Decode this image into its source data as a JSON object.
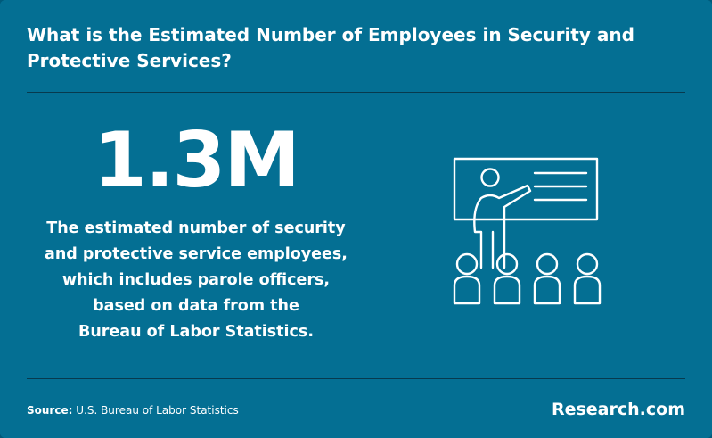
{
  "colors": {
    "background": "#046f93",
    "text": "#ffffff",
    "divider": "#0b2a36"
  },
  "header": {
    "title_line1": "What is the Estimated Number of Employees in Security and",
    "title_line2": "Protective Services?"
  },
  "stat": {
    "value": "1.3M",
    "description_lines": [
      "The estimated number of security",
      "and protective service employees,",
      "which includes parole officers,",
      "based on data from the",
      "Bureau of Labor Statistics."
    ]
  },
  "illustration": {
    "icon": "presentation-audience-icon"
  },
  "footer": {
    "source_label": "Source:",
    "source_text": "U.S. Bureau of Labor Statistics",
    "brand": "Research.com"
  }
}
